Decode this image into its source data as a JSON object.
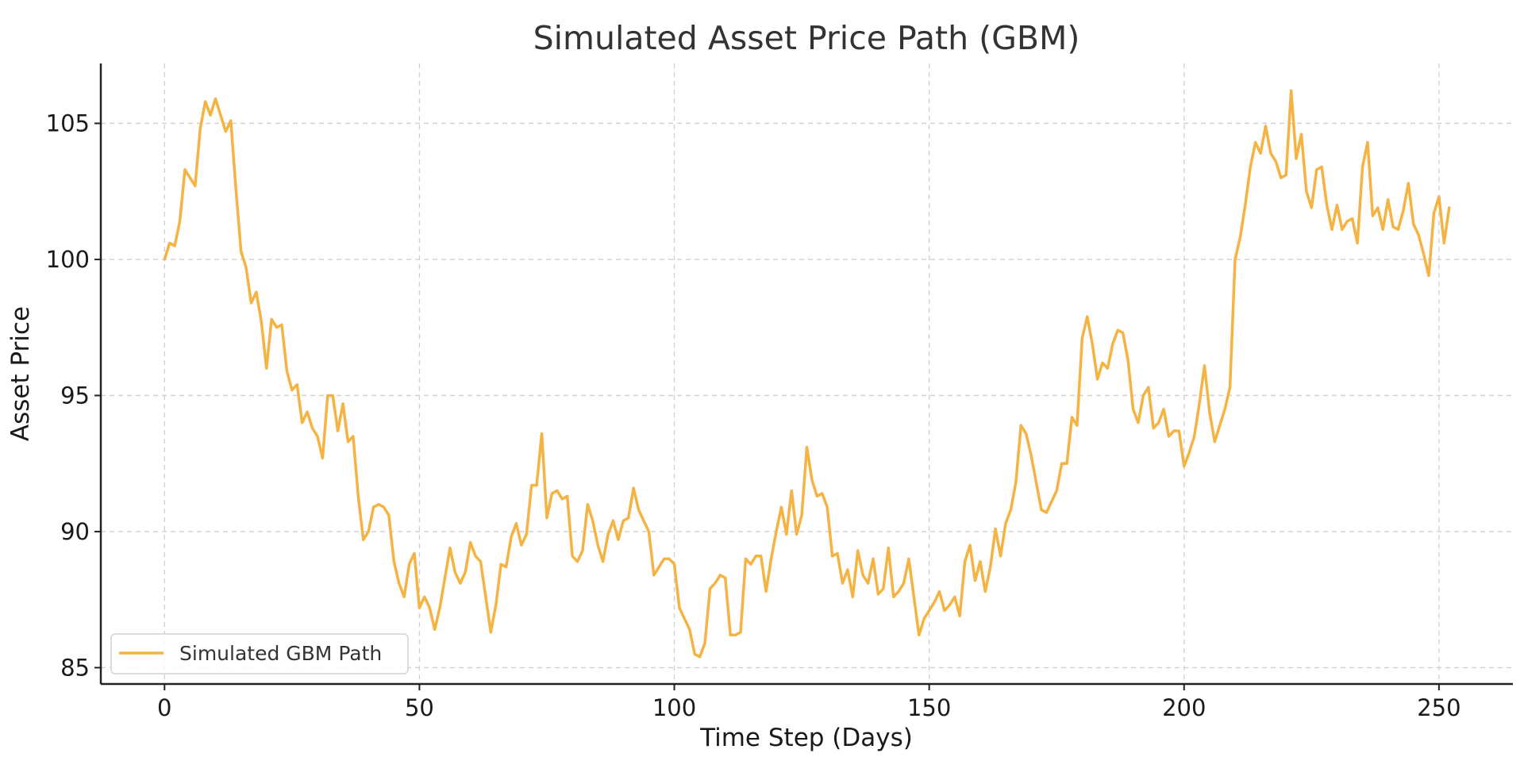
{
  "chart_data": {
    "type": "line",
    "title": "Simulated Asset Price Path (GBM)",
    "xlabel": "Time Step (Days)",
    "ylabel": "Asset Price",
    "xlim": [
      -12.5,
      264.5
    ],
    "ylim": [
      84.4,
      107.2
    ],
    "xticks": [
      0,
      50,
      100,
      150,
      200,
      250
    ],
    "xtick_labels": [
      "0",
      "50",
      "100",
      "150",
      "200",
      "250"
    ],
    "yticks": [
      85,
      90,
      95,
      100,
      105
    ],
    "ytick_labels": [
      "85",
      "90",
      "95",
      "100",
      "105"
    ],
    "grid": true,
    "legend_position": "lower-left",
    "series": [
      {
        "name": "Simulated GBM Path",
        "color": "#f4b342",
        "x_start": 0,
        "x_step": 1,
        "values": [
          100.0,
          100.6,
          100.5,
          101.4,
          103.3,
          103.0,
          102.7,
          104.8,
          105.8,
          105.3,
          105.9,
          105.3,
          104.7,
          105.1,
          102.6,
          100.3,
          99.7,
          98.4,
          98.8,
          97.7,
          96.0,
          97.8,
          97.5,
          97.6,
          95.9,
          95.2,
          95.4,
          94.0,
          94.4,
          93.8,
          93.5,
          92.7,
          95.0,
          95.0,
          93.7,
          94.7,
          93.3,
          93.5,
          91.3,
          89.7,
          90.0,
          90.9,
          91.0,
          90.9,
          90.6,
          88.9,
          88.1,
          87.6,
          88.8,
          89.2,
          87.2,
          87.6,
          87.2,
          86.4,
          87.2,
          88.3,
          89.4,
          88.5,
          88.1,
          88.5,
          89.6,
          89.1,
          88.9,
          87.6,
          86.3,
          87.3,
          88.8,
          88.7,
          89.8,
          90.3,
          89.5,
          89.9,
          91.7,
          91.7,
          93.6,
          90.5,
          91.4,
          91.5,
          91.2,
          91.3,
          89.1,
          88.9,
          89.3,
          91.0,
          90.4,
          89.5,
          88.9,
          89.9,
          90.4,
          89.7,
          90.4,
          90.5,
          91.6,
          90.8,
          90.4,
          90.0,
          88.4,
          88.7,
          89.0,
          89.0,
          88.8,
          87.2,
          86.8,
          86.4,
          85.5,
          85.4,
          85.9,
          87.9,
          88.1,
          88.4,
          88.3,
          86.2,
          86.2,
          86.3,
          89.0,
          88.8,
          89.1,
          89.1,
          87.8,
          89.0,
          90.0,
          90.9,
          89.9,
          91.5,
          89.9,
          90.6,
          93.1,
          91.9,
          91.3,
          91.4,
          90.9,
          89.1,
          89.2,
          88.1,
          88.6,
          87.6,
          89.3,
          88.4,
          88.1,
          89.0,
          87.7,
          87.9,
          89.4,
          87.6,
          87.8,
          88.1,
          89.0,
          87.6,
          86.2,
          86.8,
          87.1,
          87.4,
          87.8,
          87.1,
          87.3,
          87.6,
          86.9,
          88.9,
          89.5,
          88.2,
          88.9,
          87.8,
          88.7,
          90.1,
          89.1,
          90.3,
          90.8,
          91.8,
          93.9,
          93.6,
          92.8,
          91.8,
          90.8,
          90.7,
          91.1,
          91.5,
          92.5,
          92.5,
          94.2,
          93.9,
          97.1,
          97.9,
          96.9,
          95.6,
          96.2,
          96.0,
          96.9,
          97.4,
          97.3,
          96.3,
          94.5,
          94.0,
          95.0,
          95.3,
          93.8,
          94.0,
          94.5,
          93.5,
          93.7,
          93.7,
          92.4,
          92.9,
          93.5,
          94.7,
          96.1,
          94.4,
          93.3,
          93.9,
          94.5,
          95.3,
          100.0,
          100.8,
          102.0,
          103.4,
          104.3,
          103.9,
          104.9,
          103.9,
          103.6,
          103.0,
          103.1,
          106.2,
          103.7,
          104.6,
          102.5,
          101.9,
          103.3,
          103.4,
          102.0,
          101.1,
          102.0,
          101.1,
          101.4,
          101.5,
          100.6,
          103.4,
          104.3,
          101.6,
          101.9,
          101.1,
          102.2,
          101.2,
          101.1,
          101.8,
          102.8,
          101.3,
          100.9,
          100.2,
          99.4,
          101.7,
          102.3,
          100.6,
          101.9
        ]
      }
    ]
  }
}
